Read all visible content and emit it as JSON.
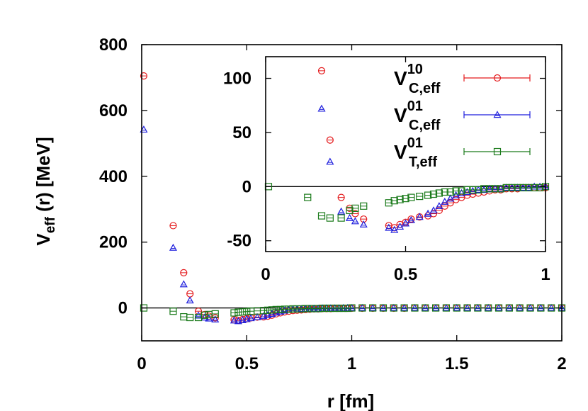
{
  "chart_data": {
    "type": "scatter",
    "xlabel": "r [fm]",
    "ylabel": {
      "main": "V",
      "sub": "eff",
      "rest": " (r) [MeV]"
    },
    "xlim": [
      0,
      2
    ],
    "ylim": [
      -100,
      800
    ],
    "xticks": [
      "0",
      "0.5",
      "1",
      "1.5",
      "2"
    ],
    "yticks": [
      "0",
      "200",
      "400",
      "600",
      "800"
    ],
    "grid": false,
    "legend_placement": "inset top-right",
    "series": [
      {
        "key": "c10",
        "name": {
          "main": "V",
          "sup": "10",
          "sub": "C,eff"
        },
        "marker": "circle",
        "color": "#e41a1c",
        "x": [
          0.01,
          0.15,
          0.2,
          0.23,
          0.27,
          0.3,
          0.32,
          0.35,
          0.44,
          0.46,
          0.48,
          0.5,
          0.52,
          0.55,
          0.58,
          0.6,
          0.62,
          0.64,
          0.66,
          0.68,
          0.7,
          0.72,
          0.74,
          0.76,
          0.78,
          0.8,
          0.82,
          0.84,
          0.86,
          0.88,
          0.9,
          0.92,
          0.94,
          0.96,
          0.98,
          1.0,
          1.05,
          1.1,
          1.15,
          1.2,
          1.25,
          1.3,
          1.35,
          1.4,
          1.45,
          1.5,
          1.55,
          1.6,
          1.65,
          1.7,
          1.75,
          1.8,
          1.85,
          1.9,
          1.95,
          2.0
        ],
        "y": [
          705,
          250,
          107,
          43,
          -10,
          -20,
          -25,
          -30,
          -36,
          -38,
          -35,
          -33,
          -30,
          -28,
          -27,
          -25,
          -22,
          -18,
          -15,
          -12,
          -10,
          -8,
          -7,
          -6,
          -5,
          -4,
          -3,
          -3,
          -2,
          -2,
          -2,
          -1,
          -1,
          -1,
          -1,
          -1,
          -1,
          -1,
          -1,
          -1,
          -1,
          0,
          0,
          0,
          0,
          0,
          0,
          0,
          0,
          0,
          0,
          0,
          0,
          0,
          0,
          0
        ]
      },
      {
        "key": "c01",
        "name": {
          "main": "V",
          "sup": "01",
          "sub": "C,eff"
        },
        "marker": "triangle",
        "color": "#1f1fdd",
        "x": [
          0.01,
          0.15,
          0.2,
          0.23,
          0.27,
          0.3,
          0.32,
          0.35,
          0.44,
          0.46,
          0.48,
          0.5,
          0.52,
          0.55,
          0.58,
          0.6,
          0.62,
          0.64,
          0.66,
          0.68,
          0.7,
          0.72,
          0.74,
          0.76,
          0.78,
          0.8,
          0.82,
          0.84,
          0.86,
          0.88,
          0.9,
          0.92,
          0.94,
          0.96,
          0.98,
          1.0,
          1.05,
          1.1,
          1.15,
          1.2,
          1.25,
          1.3,
          1.35,
          1.4,
          1.45,
          1.5,
          1.55,
          1.6,
          1.65,
          1.7,
          1.75,
          1.8,
          1.85,
          1.9,
          1.95,
          2.0
        ],
        "y": [
          542,
          183,
          72,
          23,
          -23,
          -29,
          -32,
          -35,
          -38,
          -40,
          -37,
          -34,
          -31,
          -28,
          -25,
          -22,
          -18,
          -14,
          -11,
          -8,
          -6,
          -5,
          -4,
          -3,
          -3,
          -2,
          -2,
          -2,
          -1,
          -1,
          -1,
          -1,
          -1,
          0,
          0,
          0,
          0,
          0,
          0,
          0,
          0,
          0,
          0,
          0,
          0,
          0,
          0,
          0,
          0,
          0,
          0,
          0,
          0,
          0,
          0,
          0
        ]
      },
      {
        "key": "t01",
        "name": {
          "main": "V",
          "sup": "01",
          "sub": "T,eff"
        },
        "marker": "square",
        "color": "#1a7a1a",
        "x": [
          0.01,
          0.15,
          0.2,
          0.23,
          0.27,
          0.3,
          0.32,
          0.35,
          0.44,
          0.46,
          0.48,
          0.5,
          0.52,
          0.55,
          0.58,
          0.6,
          0.62,
          0.64,
          0.66,
          0.68,
          0.7,
          0.72,
          0.74,
          0.76,
          0.78,
          0.8,
          0.82,
          0.84,
          0.86,
          0.88,
          0.9,
          0.92,
          0.94,
          0.96,
          0.98,
          1.0,
          1.05,
          1.1,
          1.15,
          1.2,
          1.25,
          1.3,
          1.35,
          1.4,
          1.45,
          1.5,
          1.55,
          1.6,
          1.65,
          1.7,
          1.75,
          1.8,
          1.85,
          1.9,
          1.95,
          2.0
        ],
        "y": [
          0,
          -10,
          -27,
          -29,
          -29,
          -22,
          -20,
          -18,
          -15,
          -13,
          -12,
          -11,
          -10,
          -9,
          -8,
          -7,
          -6,
          -5,
          -5,
          -4,
          -4,
          -3,
          -3,
          -3,
          -2,
          -2,
          -2,
          -2,
          -1,
          -1,
          -1,
          -1,
          -1,
          -1,
          -1,
          0,
          0,
          0,
          0,
          0,
          0,
          0,
          0,
          0,
          0,
          0,
          0,
          0,
          0,
          0,
          0,
          0,
          0,
          0,
          0,
          0
        ]
      }
    ],
    "inset": {
      "xlim": [
        0,
        1
      ],
      "ylim": [
        -60,
        120
      ],
      "xticks": [
        "0",
        "0.5",
        "1"
      ],
      "yticks": [
        "-50",
        "0",
        "50",
        "100"
      ]
    }
  }
}
